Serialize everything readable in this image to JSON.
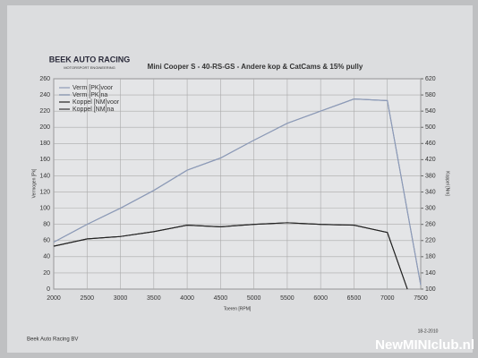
{
  "chart_data": {
    "type": "line",
    "logo": "BEEK AUTO RACING",
    "logo_subtitle": "MOTORSPORT ENGINEERING",
    "title": "Mini Cooper S - 40-RS-GS - Andere kop & CatCams & 15% pully",
    "ylabel": "Vermogen [Pk]",
    "y2label": "Koppel [Nm]",
    "xlabel": "Toeren [RPM]",
    "date": "18-2-2010",
    "footer": "Beek Auto Racing BV",
    "watermark": "NewMINIclub.nl",
    "xlim": [
      2000,
      7500
    ],
    "xticks": [
      2000,
      2500,
      3000,
      3500,
      4000,
      4500,
      5000,
      5500,
      6000,
      6500,
      7000,
      7500
    ],
    "ylim": [
      0,
      260
    ],
    "yticks": [
      0,
      20,
      40,
      60,
      80,
      100,
      120,
      140,
      160,
      180,
      200,
      220,
      240,
      260
    ],
    "y2lim": [
      100,
      620
    ],
    "y2ticks": [
      100,
      140,
      180,
      220,
      260,
      300,
      340,
      380,
      420,
      460,
      500,
      540,
      580,
      620
    ],
    "grid": true,
    "series": [
      {
        "name": "Verm [PK]voor",
        "color": "#8d9bb8",
        "x": [
          2000,
          2500,
          3000,
          3500,
          4000,
          4500,
          5000,
          5500,
          6000,
          6500,
          7000,
          7500
        ],
        "values": [
          58,
          80,
          100,
          122,
          147,
          162,
          184,
          205,
          220,
          235,
          233,
          5
        ]
      },
      {
        "name": "Verm [PK]na",
        "color": "#7a88a6",
        "x": [
          2000,
          2500,
          3000,
          3500,
          4000,
          4500,
          5000,
          5500,
          6000,
          6500,
          7000,
          7500
        ],
        "values": [
          58,
          80,
          100,
          122,
          147,
          162,
          184,
          205,
          220,
          235,
          233,
          5
        ]
      },
      {
        "name": "Koppel [NM]voor",
        "color": "#222222",
        "axis": "y2",
        "x": [
          2000,
          2500,
          3000,
          3500,
          4000,
          4500,
          5000,
          5500,
          6000,
          6500,
          7000,
          7300
        ],
        "values": [
          206,
          224,
          230,
          242,
          258,
          254,
          260,
          264,
          260,
          258,
          240,
          100
        ]
      },
      {
        "name": "Koppel [NM]na",
        "color": "#333333",
        "axis": "y2",
        "x": [
          2000,
          2500,
          3000,
          3500,
          4000,
          4500,
          5000,
          5500,
          6000,
          6500,
          7000,
          7300
        ],
        "values": [
          206,
          224,
          230,
          242,
          258,
          254,
          260,
          264,
          260,
          258,
          240,
          100
        ]
      }
    ]
  }
}
